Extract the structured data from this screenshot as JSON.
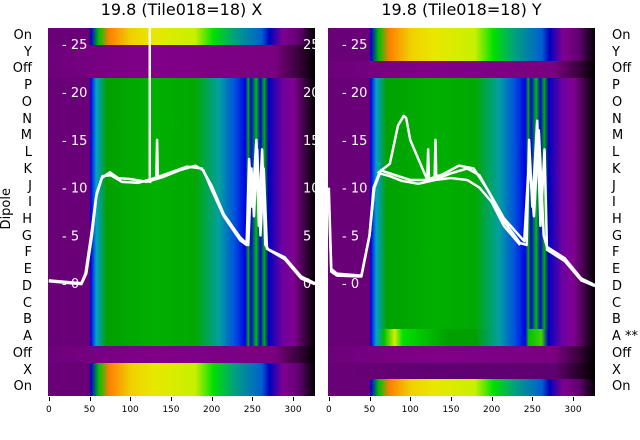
{
  "chart_data": [
    {
      "type": "heatmap",
      "title": "19.8 (Tile018=18) X",
      "ylabel": "Dipole",
      "row_labels": [
        "On",
        "Y",
        "Off",
        "P",
        "O",
        "N",
        "M",
        "L",
        "K",
        "J",
        "I",
        "H",
        "G",
        "F",
        "E",
        "D",
        "C",
        "B",
        "A",
        "Off",
        "X",
        "On"
      ],
      "row_kinds": [
        "spec",
        "purp",
        "purp",
        "green",
        "green",
        "green",
        "green",
        "green",
        "green",
        "green",
        "green",
        "green",
        "green",
        "green",
        "green",
        "green",
        "green",
        "green",
        "green",
        "purp",
        "spec",
        "spec"
      ],
      "xticks": [
        0,
        50,
        100,
        150,
        200,
        250,
        300
      ],
      "xlim": [
        -1,
        327
      ],
      "overlay_yticks": [
        0,
        5,
        10,
        15,
        20,
        25
      ],
      "overlay_ylim": [
        -11.8,
        26.7
      ],
      "traces": [
        [
          [
            0,
            0.3
          ],
          [
            40,
            0
          ],
          [
            45,
            1
          ],
          [
            52,
            5
          ],
          [
            58,
            9
          ],
          [
            65,
            11
          ],
          [
            75,
            11.6
          ],
          [
            85,
            11
          ],
          [
            100,
            10.9
          ],
          [
            120,
            10.6
          ],
          [
            140,
            11.1
          ],
          [
            160,
            11.8
          ],
          [
            180,
            12.3
          ],
          [
            190,
            11.8
          ],
          [
            200,
            9.8
          ],
          [
            215,
            7
          ],
          [
            235,
            4.5
          ],
          [
            243,
            4
          ],
          [
            246,
            13
          ],
          [
            250,
            8
          ],
          [
            255,
            15
          ],
          [
            258,
            6
          ],
          [
            262,
            14
          ],
          [
            266,
            4
          ],
          [
            270,
            3.5
          ],
          [
            290,
            2.5
          ],
          [
            310,
            0.5
          ],
          [
            327,
            -0.1
          ]
        ],
        [
          [
            0,
            0.2
          ],
          [
            40,
            -0.1
          ],
          [
            46,
            1
          ],
          [
            53,
            5
          ],
          [
            59,
            9.5
          ],
          [
            66,
            11.2
          ],
          [
            76,
            11.3
          ],
          [
            90,
            10.6
          ],
          [
            110,
            10.5
          ],
          [
            130,
            11
          ],
          [
            150,
            11.6
          ],
          [
            170,
            12.2
          ],
          [
            188,
            12
          ],
          [
            200,
            10.2
          ],
          [
            215,
            7.2
          ],
          [
            235,
            4.8
          ],
          [
            245,
            4
          ],
          [
            249,
            12
          ],
          [
            252,
            7
          ],
          [
            256,
            14
          ],
          [
            260,
            5
          ],
          [
            264,
            12
          ],
          [
            268,
            3.6
          ],
          [
            290,
            2.7
          ],
          [
            310,
            0.7
          ],
          [
            327,
            0
          ]
        ],
        [
          [
            124,
            27
          ],
          [
            124,
            10.6
          ],
          [
            126,
            10.6
          ]
        ],
        [
          [
            132,
            10.8
          ],
          [
            133,
            15
          ],
          [
            134,
            11
          ]
        ]
      ]
    },
    {
      "type": "heatmap",
      "title": "19.8 (Tile018=18) Y",
      "row_labels": [
        "On",
        "Y",
        "Off",
        "P",
        "O",
        "N",
        "M",
        "L",
        "K",
        "J",
        "I",
        "H",
        "G",
        "F",
        "E",
        "D",
        "C",
        "B",
        "A **",
        "Off",
        "X",
        "On"
      ],
      "row_kinds": [
        "spec",
        "spec",
        "purp",
        "green",
        "green",
        "green",
        "green",
        "green",
        "green",
        "green",
        "green",
        "green",
        "green",
        "green",
        "green",
        "green",
        "green",
        "green",
        "greenA",
        "purp",
        "dpurp",
        "spec"
      ],
      "xticks": [
        0,
        50,
        100,
        150,
        200,
        250,
        300
      ],
      "xlim": [
        -1,
        327
      ],
      "overlay_yticks": [
        0,
        5,
        10,
        15,
        20,
        25
      ],
      "overlay_ylim": [
        -11.8,
        26.7
      ],
      "traces": [
        [
          [
            0,
            10
          ],
          [
            3,
            1.5
          ],
          [
            10,
            1
          ],
          [
            40,
            0.8
          ],
          [
            50,
            5
          ],
          [
            55,
            10
          ],
          [
            62,
            11.5
          ],
          [
            75,
            11.2
          ],
          [
            90,
            10.7
          ],
          [
            110,
            10.4
          ],
          [
            130,
            10.8
          ],
          [
            150,
            11.5
          ],
          [
            170,
            12
          ],
          [
            185,
            11.3
          ],
          [
            200,
            9
          ],
          [
            215,
            6.5
          ],
          [
            235,
            4.2
          ],
          [
            243,
            4
          ],
          [
            246,
            15
          ],
          [
            250,
            8
          ],
          [
            256,
            17
          ],
          [
            260,
            6
          ],
          [
            265,
            14
          ],
          [
            268,
            3.5
          ],
          [
            290,
            2.3
          ],
          [
            310,
            0.3
          ],
          [
            327,
            -0.3
          ]
        ],
        [
          [
            0,
            9
          ],
          [
            3,
            1.2
          ],
          [
            10,
            0.8
          ],
          [
            40,
            0.7
          ],
          [
            50,
            5
          ],
          [
            56,
            10
          ],
          [
            64,
            11.8
          ],
          [
            78,
            11.4
          ],
          [
            100,
            10.8
          ],
          [
            120,
            10.8
          ],
          [
            140,
            11.4
          ],
          [
            160,
            12.3
          ],
          [
            178,
            12
          ],
          [
            195,
            9.8
          ],
          [
            215,
            6.8
          ],
          [
            240,
            4.4
          ],
          [
            246,
            13
          ],
          [
            252,
            7
          ],
          [
            258,
            16
          ],
          [
            264,
            5
          ],
          [
            268,
            3.8
          ],
          [
            290,
            2.6
          ],
          [
            310,
            0.5
          ],
          [
            327,
            -0.2
          ]
        ],
        [
          [
            60,
            11.5
          ],
          [
            75,
            12.5
          ],
          [
            85,
            16.5
          ],
          [
            92,
            17.5
          ],
          [
            95,
            17.3
          ],
          [
            100,
            15
          ],
          [
            110,
            13
          ],
          [
            120,
            11
          ],
          [
            130,
            10.8
          ],
          [
            150,
            11
          ],
          [
            170,
            10.8
          ],
          [
            185,
            10
          ],
          [
            200,
            8.5
          ],
          [
            215,
            6
          ],
          [
            235,
            4
          ]
        ],
        [
          [
            121,
            11
          ],
          [
            122,
            14
          ],
          [
            123,
            11
          ]
        ],
        [
          [
            130,
            11
          ],
          [
            131,
            15
          ],
          [
            132,
            11
          ]
        ]
      ]
    }
  ]
}
